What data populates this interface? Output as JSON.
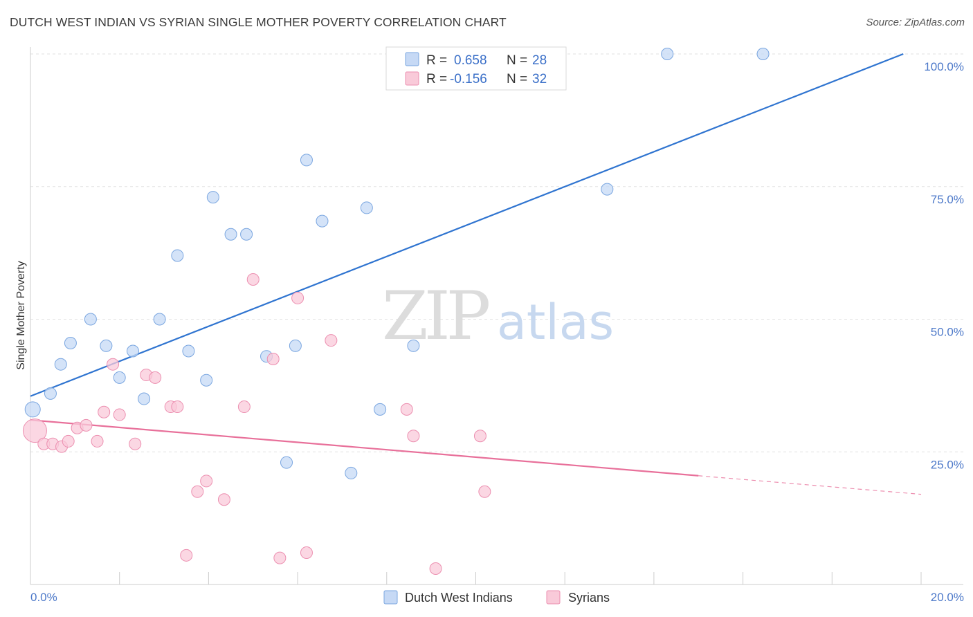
{
  "title": "DUTCH WEST INDIAN VS SYRIAN SINGLE MOTHER POVERTY CORRELATION CHART",
  "source": "Source: ZipAtlas.com",
  "watermark": {
    "zip": "ZIP",
    "atlas": "atlas"
  },
  "legend": {
    "rows": [
      {
        "r_label": "R = ",
        "r_value": "0.658",
        "n_label": "N = ",
        "n_value": "28"
      },
      {
        "r_label": "R = ",
        "r_value": "-0.156",
        "n_label": "N = ",
        "n_value": "32"
      }
    ]
  },
  "bottom_legend": [
    "Dutch West Indians",
    "Syrians"
  ],
  "colors": {
    "blue_fill": "#c6d9f5",
    "blue_stroke": "#7aa6e0",
    "blue_line": "#2f74d0",
    "pink_fill": "#f9cad9",
    "pink_stroke": "#ec8fb0",
    "pink_line": "#e8709a",
    "grid": "#e2e2e2",
    "label": "#4d79c9"
  },
  "chart_data": {
    "type": "scatter",
    "title": "DUTCH WEST INDIAN VS SYRIAN SINGLE MOTHER POVERTY CORRELATION CHART",
    "xlabel": "",
    "ylabel": "Single Mother Poverty",
    "xlim": [
      0,
      20
    ],
    "ylim": [
      0,
      100
    ],
    "x_tick_labels": [
      "0.0%",
      "20.0%"
    ],
    "y_tick_labels": [
      "25.0%",
      "50.0%",
      "75.0%",
      "100.0%"
    ],
    "y_ticks": [
      25,
      50,
      75,
      100
    ],
    "grid": "horizontal dashed",
    "legend_position": "top-center",
    "series": [
      {
        "name": "Dutch West Indians",
        "color": "#c6d9f5",
        "x": [
          0.05,
          0.45,
          0.68,
          0.9,
          1.35,
          1.7,
          2.0,
          2.3,
          2.55,
          2.9,
          3.3,
          3.55,
          3.95,
          4.1,
          4.5,
          4.85,
          5.3,
          5.75,
          5.95,
          6.2,
          6.55,
          7.2,
          7.55,
          7.85,
          8.6,
          12.95,
          14.3,
          16.45
        ],
        "y": [
          33,
          36,
          41.5,
          45.5,
          50,
          45,
          39,
          44,
          35,
          50,
          62,
          44,
          38.5,
          73,
          66,
          66,
          43,
          23,
          45,
          80,
          68.5,
          21,
          71,
          33,
          45,
          74.5,
          100,
          100
        ]
      },
      {
        "name": "Syrians",
        "color": "#f9cad9",
        "x": [
          0.1,
          0.3,
          0.5,
          0.7,
          0.85,
          1.05,
          1.25,
          1.5,
          1.65,
          1.85,
          2.0,
          2.35,
          2.6,
          2.8,
          3.15,
          3.3,
          3.5,
          3.75,
          3.95,
          4.35,
          4.8,
          5.0,
          5.45,
          5.6,
          6.0,
          6.2,
          6.75,
          8.45,
          8.6,
          9.1,
          10.1,
          10.2
        ],
        "y": [
          29,
          26.5,
          26.5,
          26,
          27,
          29.5,
          30,
          27,
          32.5,
          41.5,
          32,
          26.5,
          39.5,
          39,
          33.5,
          33.5,
          5.5,
          17.5,
          19.5,
          16,
          33.5,
          57.5,
          42.5,
          5,
          54,
          6,
          46,
          33,
          28,
          3,
          28,
          17.5
        ]
      }
    ],
    "trendlines": [
      {
        "series": "Dutch West Indians",
        "x": [
          0,
          19.6
        ],
        "y": [
          35.5,
          100
        ]
      },
      {
        "series": "Syrians",
        "x": [
          0,
          15
        ],
        "y": [
          31,
          20.5
        ],
        "extended": {
          "x": [
            15,
            20
          ],
          "y": [
            20.5,
            17
          ]
        }
      }
    ]
  }
}
